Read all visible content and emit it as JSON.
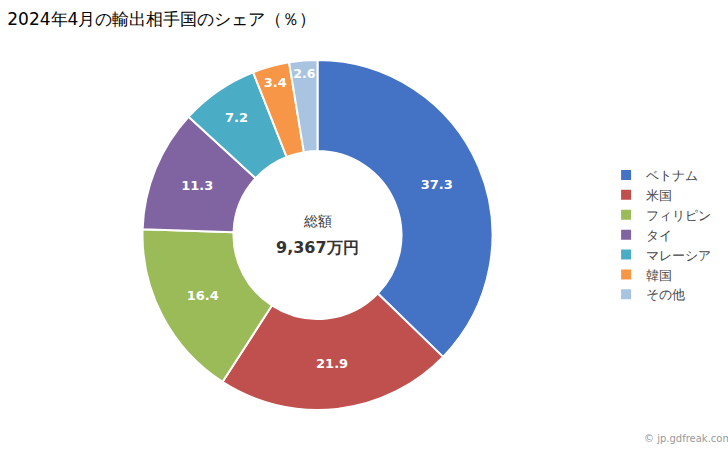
{
  "chart_data": {
    "type": "pie",
    "title": "2024年4月の輸出相手国のシェア（％）",
    "categories": [
      "ベトナム",
      "米国",
      "フィリピン",
      "タイ",
      "マレーシア",
      "韓国",
      "その他"
    ],
    "values": [
      37.3,
      21.9,
      16.4,
      11.3,
      7.2,
      3.4,
      2.6
    ],
    "colors": [
      "#4472C4",
      "#C0504D",
      "#9BBB59",
      "#8064A2",
      "#4BACC6",
      "#F79646",
      "#A8C4E0"
    ],
    "data_labels": true,
    "legend": "right",
    "annotations": [
      "総額",
      "9,367万円",
      "© jp.gdfreak.com"
    ]
  }
}
